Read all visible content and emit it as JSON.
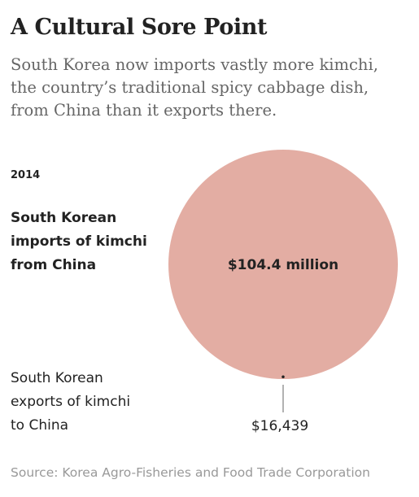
{
  "header": {
    "title": "A Cultural Sore Point",
    "subtitle_lines": [
      "South Korea now imports vastly more kimchi,",
      "the country’s traditional spicy cabbage dish,",
      "from China than it exports there."
    ]
  },
  "chart_data": {
    "type": "proportional-circle",
    "year_label": "2014",
    "colors": {
      "circle": "#e3ada3",
      "text": "#222222",
      "leader": "#888888"
    },
    "items": [
      {
        "label_lines": [
          "South Korean",
          "imports of kimchi",
          "from China"
        ],
        "value": 104400000,
        "value_label": "$104.4 million"
      },
      {
        "label_lines": [
          "South Korean",
          "exports of kimchi",
          "to China"
        ],
        "value": 16439,
        "value_label": "$16,439"
      }
    ]
  },
  "source": "Source: Korea Agro-Fisheries and Food Trade Corporation"
}
